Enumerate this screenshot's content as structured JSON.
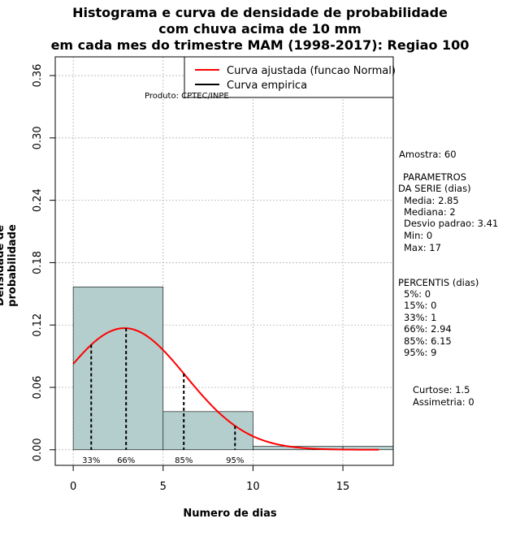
{
  "title_lines": [
    "Histograma e curva de densidade de probabilidade",
    "com chuva acima de 10 mm",
    "em cada mes do trimestre MAM (1998-2017): Regiao 100"
  ],
  "producer": "Produto: CPTEC/INPE",
  "stats": {
    "amostra": "Amostra: 60",
    "parametros_title_1": "PARAMETROS",
    "parametros_title_2": "DA SERIE (dias)",
    "media": "Media: 2.85",
    "mediana": "Mediana: 2",
    "desvio": "Desvio padrao: 3.41",
    "min": "Min: 0",
    "max": "Max: 17",
    "percentis_title": "PERCENTIS (dias)",
    "p5": "5%: 0",
    "p15": "15%: 0",
    "p33": "33%: 1",
    "p66": "66%: 2.94",
    "p85": "85%: 6.15",
    "p95": "95%: 9",
    "curtose": "Curtose: 1.5",
    "assimetria": "Assimetria: 0"
  },
  "chart_data": {
    "type": "bar",
    "title": "Histograma e curva de densidade de probabilidade com chuva acima de 10 mm em cada mes do trimestre MAM (1998-2017): Regiao 100",
    "xlabel": "Numero de dias",
    "ylabel": "Densidade de probabilidade",
    "xlim": [
      -1,
      17.8
    ],
    "ylim": [
      -0.015,
      0.378
    ],
    "x_ticks": [
      0,
      5,
      10,
      15
    ],
    "y_ticks": [
      0.0,
      0.06,
      0.12,
      0.18,
      0.24,
      0.3,
      0.36
    ],
    "y_tick_labels": [
      "0.00",
      "0.06",
      "0.12",
      "0.18",
      "0.24",
      "0.30",
      "0.36"
    ],
    "grid": true,
    "bins": [
      {
        "start": 0,
        "end": 5,
        "density": 0.1567
      },
      {
        "start": 5,
        "end": 10,
        "density": 0.0367
      },
      {
        "start": 10,
        "end": 15,
        "density": 0.0033
      },
      {
        "start": 15,
        "end": 20,
        "density": 0.0033
      }
    ],
    "normal_curve": {
      "mean": 2.85,
      "sd": 3.41,
      "x_from": 0,
      "x_to": 17
    },
    "percentile_lines": [
      {
        "x": 1,
        "label": "33%"
      },
      {
        "x": 2.94,
        "label": "66%"
      },
      {
        "x": 6.15,
        "label": "85%"
      },
      {
        "x": 9,
        "label": "95%"
      }
    ],
    "legend": {
      "position": "top-right",
      "entries": [
        {
          "label": "Curva ajustada (funcao Normal)",
          "color": "#ff0000"
        },
        {
          "label": "Curva empirica",
          "color": "#000000"
        }
      ]
    },
    "colors": {
      "bar_fill": "#b4cece",
      "bar_stroke": "#000000",
      "curve": "#ff0000",
      "grid": "#b3b3b3"
    }
  }
}
